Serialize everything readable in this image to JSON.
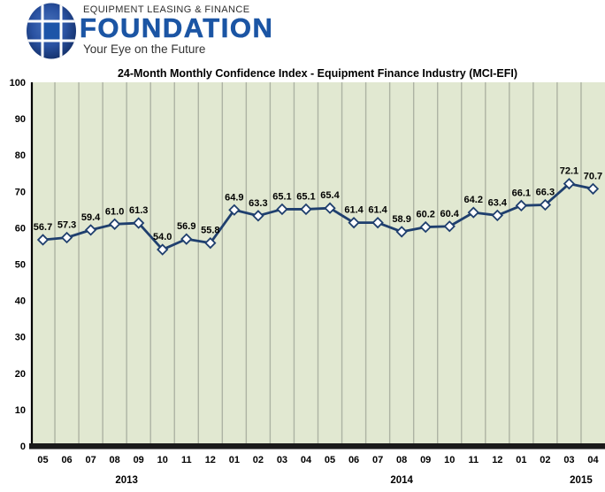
{
  "header": {
    "org_line1": "EQUIPMENT LEASING & FINANCE",
    "org_name": "FOUNDATION",
    "tagline": "Your Eye on the Future",
    "brand_blue": "#1b55a4"
  },
  "chart_data": {
    "type": "line",
    "title": "24-Month Monthly Confidence Index - Equipment Finance Industry (MCI-EFI)",
    "x": [
      "05",
      "06",
      "07",
      "08",
      "09",
      "10",
      "11",
      "12",
      "01",
      "02",
      "03",
      "04",
      "05",
      "06",
      "07",
      "08",
      "09",
      "10",
      "11",
      "12",
      "01",
      "02",
      "03",
      "04"
    ],
    "year_groups": [
      {
        "label": "2013",
        "anchor_index": 3.5
      },
      {
        "label": "2014",
        "anchor_index": 15
      },
      {
        "label": "2015",
        "anchor_index": 22.5
      }
    ],
    "values": [
      56.7,
      57.3,
      59.4,
      61.0,
      61.3,
      54.0,
      56.9,
      55.8,
      64.9,
      63.3,
      65.1,
      65.1,
      65.4,
      61.4,
      61.4,
      58.9,
      60.2,
      60.4,
      64.2,
      63.4,
      66.1,
      66.3,
      72.1,
      70.7
    ],
    "ylim": [
      0,
      100
    ],
    "yticks": [
      0,
      10,
      20,
      30,
      40,
      50,
      60,
      70,
      80,
      90,
      100
    ],
    "grid": "vertical",
    "legend": "none",
    "marker": "diamond",
    "colors": {
      "line": "#1f3f6e",
      "marker_fill": "#ffffff",
      "plot_bg": "#e1e8d1",
      "gridline": "#adb3a3",
      "axis": "#1a1a1a",
      "text": "#000000"
    }
  }
}
